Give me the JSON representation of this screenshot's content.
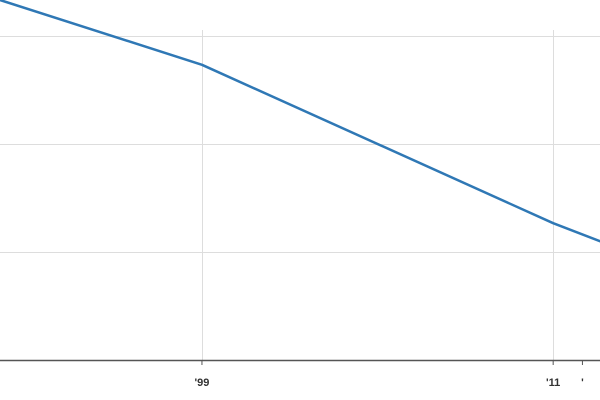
{
  "chart_data": {
    "type": "line",
    "title": "",
    "xlabel": "",
    "ylabel": "",
    "x_tick_labels": [
      {
        "x": 1999,
        "label": "'99"
      },
      {
        "x": 2011,
        "label": "'11"
      },
      {
        "x": 2012,
        "label": "'"
      }
    ],
    "x_range": [
      1992.1,
      2012.6
    ],
    "y_range": [
      0,
      100
    ],
    "grid": true,
    "grid_y_values": [
      30,
      60,
      90
    ],
    "grid_x_values": [
      1999,
      2011
    ],
    "series": [
      {
        "name": "",
        "color": "#2f78b5",
        "points": [
          {
            "x": 1992.1,
            "y": 100
          },
          {
            "x": 1999,
            "y": 82
          },
          {
            "x": 2011,
            "y": 38
          },
          {
            "x": 2012.6,
            "y": 33
          }
        ]
      }
    ]
  }
}
